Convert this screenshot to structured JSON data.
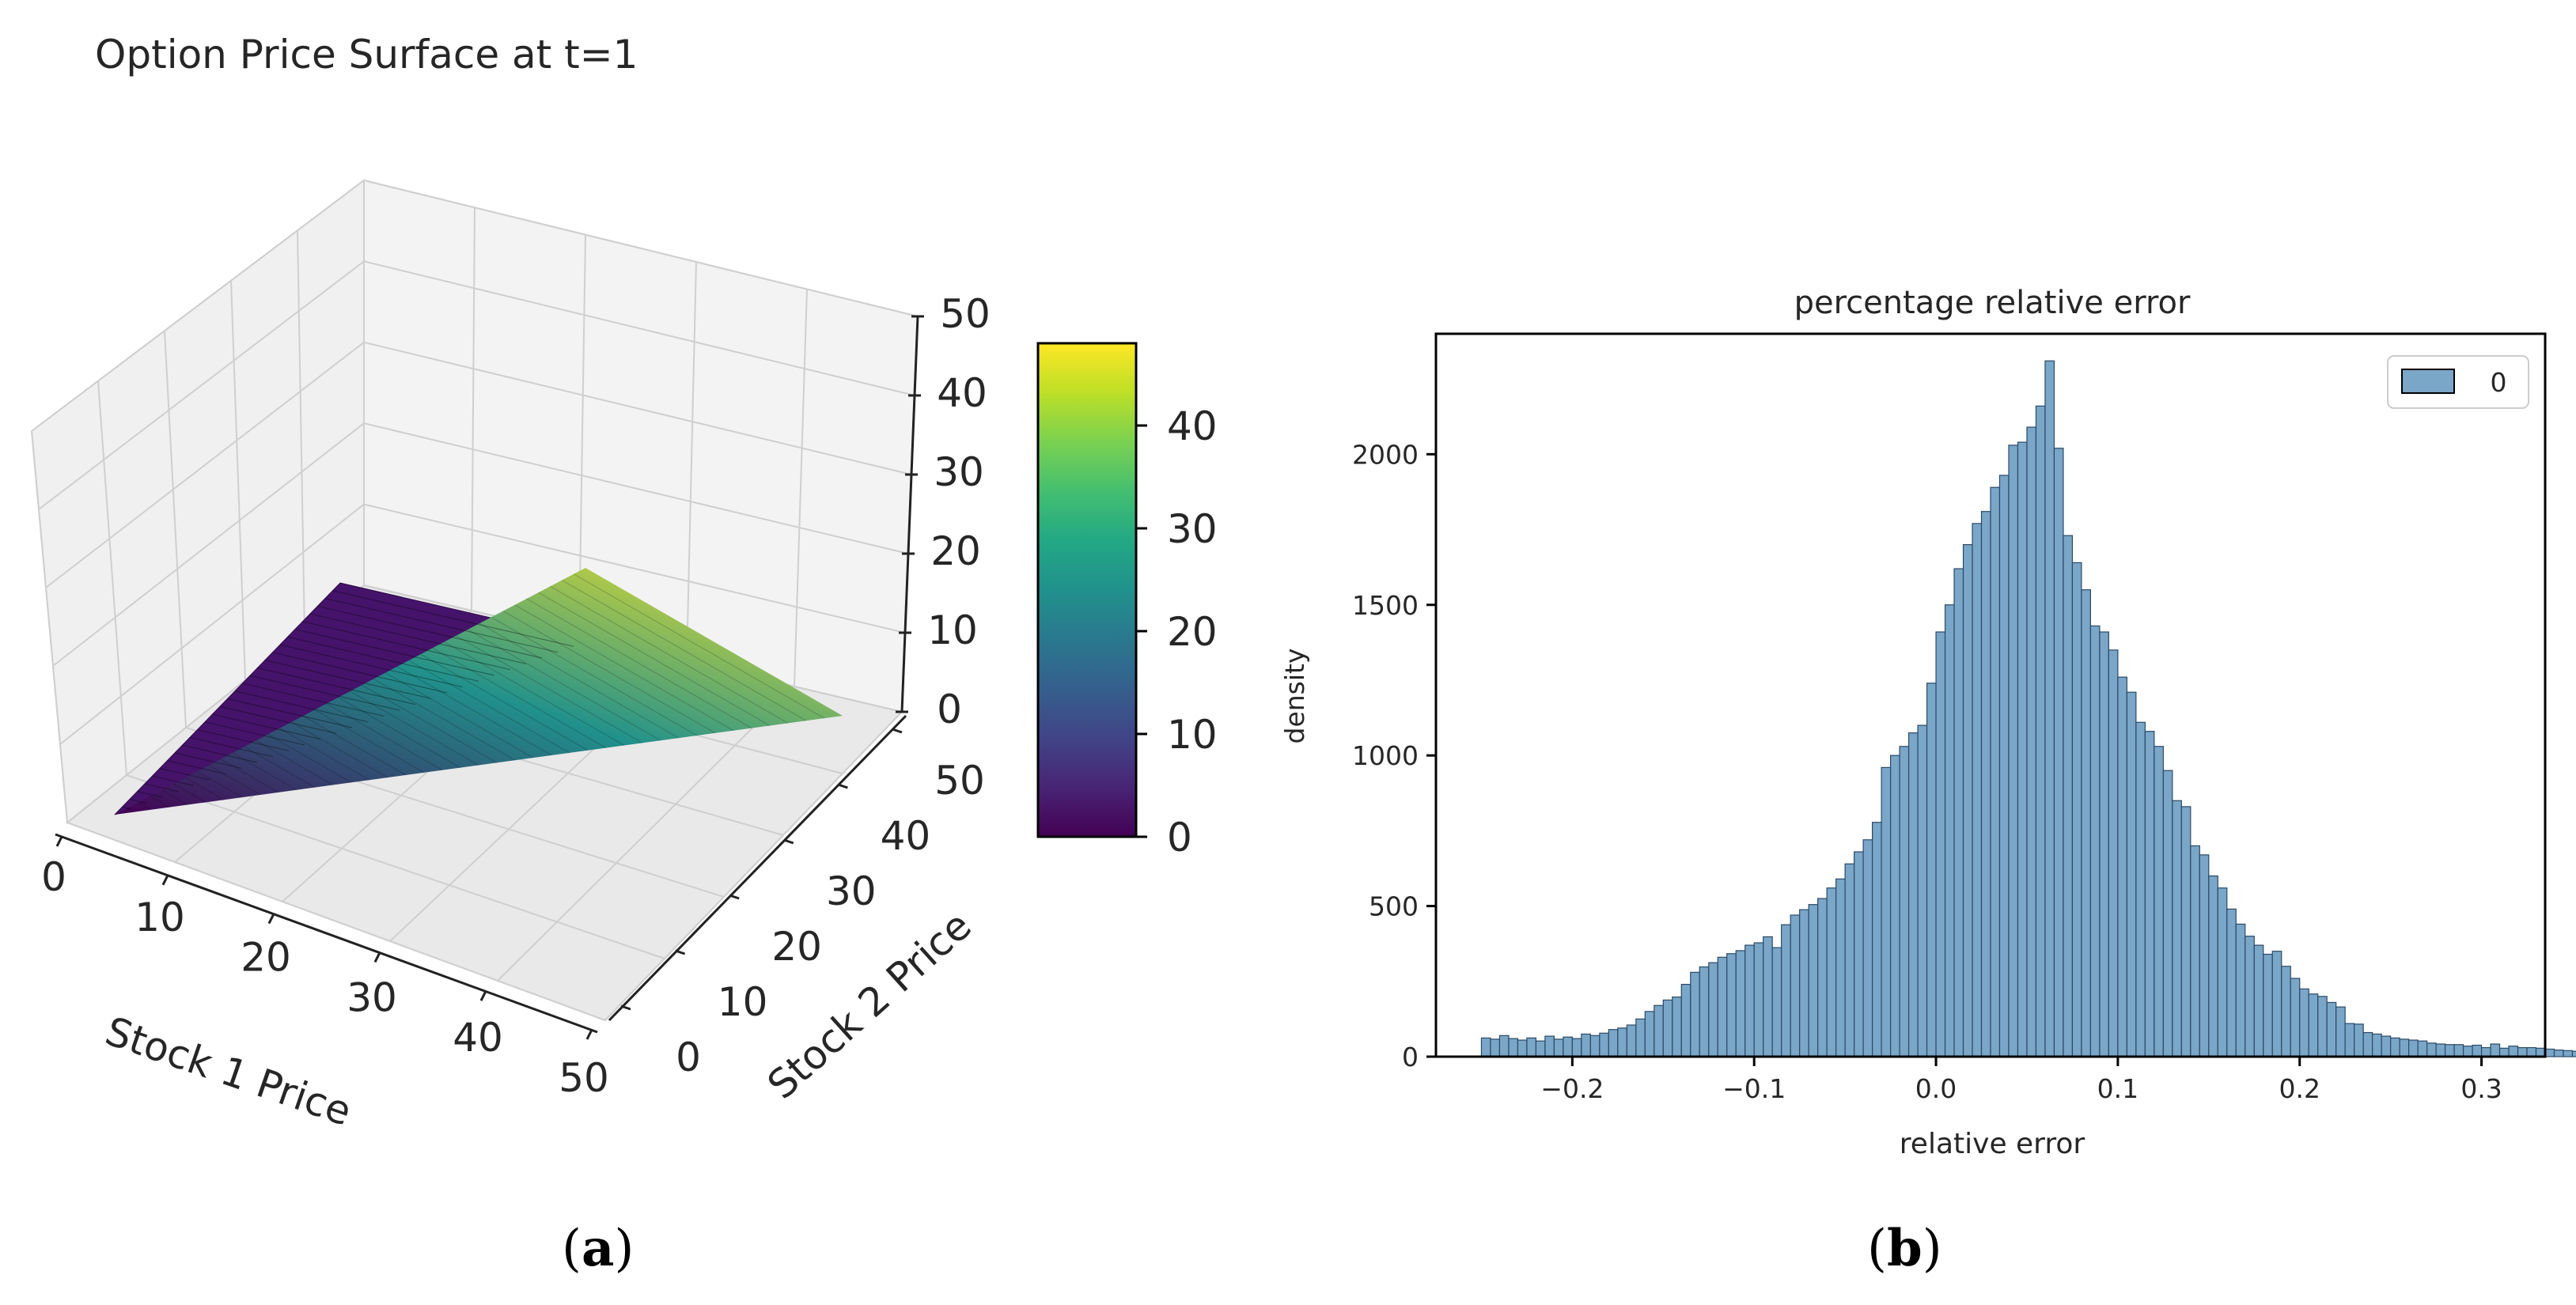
{
  "figure": {
    "panels": [
      {
        "label_open": "(",
        "label_letter": "a",
        "label_close": ")"
      },
      {
        "label_open": "(",
        "label_letter": "b",
        "label_close": ")"
      }
    ]
  },
  "chart_data": [
    {
      "type": "surface",
      "title": "Option Price Surface at t=1",
      "xlabel": "Stock 1 Price",
      "ylabel": "Stock 2 Price",
      "zlabel": "",
      "x_ticks": [
        "0",
        "10",
        "20",
        "30",
        "40",
        "50"
      ],
      "y_ticks": [
        "0",
        "10",
        "20",
        "30",
        "40",
        "50"
      ],
      "z_ticks": [
        "0",
        "10",
        "20",
        "30",
        "40",
        "50"
      ],
      "xlim": [
        0,
        50
      ],
      "ylim": [
        0,
        50
      ],
      "zlim": [
        0,
        50
      ],
      "surface": {
        "description_formula": "z = max(x - y, 0)",
        "z_min": 0,
        "z_max": 48,
        "peak": {
          "x": 50,
          "y": 0,
          "z": 48
        }
      },
      "colormap": "viridis",
      "colorbar": {
        "ticks": [
          "0",
          "10",
          "20",
          "30",
          "40"
        ],
        "range": [
          0,
          48
        ]
      },
      "grid": true
    },
    {
      "type": "histogram",
      "title": "percentage relative error",
      "xlabel": "relative error",
      "ylabel": "density",
      "x_ticks": [
        "−0.2",
        "−0.1",
        "0.0",
        "0.1",
        "0.2",
        "0.3"
      ],
      "y_ticks": [
        "0",
        "500",
        "1000",
        "1500",
        "2000"
      ],
      "xlim": [
        -0.275,
        0.335
      ],
      "ylim": [
        0,
        2400
      ],
      "legend": {
        "label": "0",
        "position": "upper-right"
      },
      "bar_color": "#7aa6c8",
      "bin_start": -0.25,
      "bin_width": 0.005,
      "bin_counts": [
        62,
        58,
        70,
        60,
        55,
        62,
        52,
        68,
        58,
        65,
        60,
        75,
        70,
        78,
        90,
        95,
        105,
        125,
        150,
        170,
        188,
        198,
        240,
        280,
        298,
        312,
        330,
        342,
        352,
        370,
        378,
        398,
        362,
        438,
        470,
        488,
        505,
        525,
        560,
        590,
        640,
        680,
        720,
        778,
        960,
        1000,
        1030,
        1075,
        1100,
        1240,
        1410,
        1500,
        1620,
        1700,
        1770,
        1810,
        1890,
        1930,
        2030,
        2040,
        2090,
        2160,
        2310,
        2020,
        1730,
        1640,
        1550,
        1430,
        1410,
        1350,
        1260,
        1210,
        1110,
        1080,
        1030,
        950,
        850,
        830,
        700,
        670,
        600,
        560,
        490,
        440,
        400,
        370,
        340,
        350,
        300,
        260,
        225,
        208,
        200,
        180,
        165,
        110,
        108,
        80,
        75,
        68,
        62,
        58,
        55,
        52,
        45,
        42,
        40,
        40,
        35,
        38,
        30,
        42,
        28,
        35,
        30,
        30,
        28,
        25,
        22,
        20,
        18,
        15,
        12,
        12
      ]
    }
  ]
}
